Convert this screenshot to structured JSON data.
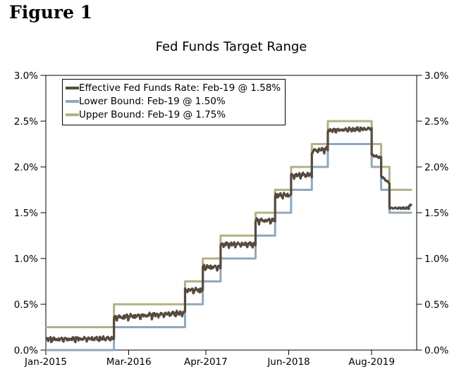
{
  "header": {
    "figure_label": "Figure 1"
  },
  "chart_data": {
    "type": "line",
    "title": "Fed Funds Target Range",
    "grid": false,
    "legend_position": "top-left-inside",
    "x_axis": {
      "unit": "months since Jan-2015",
      "range_months": [
        0,
        62.6
      ],
      "ticks": [
        {
          "m": 0,
          "label": "Jan-2015"
        },
        {
          "m": 14,
          "label": "Mar-2016"
        },
        {
          "m": 27,
          "label": "Apr-2017"
        },
        {
          "m": 41,
          "label": "Jun-2018"
        },
        {
          "m": 55,
          "label": "Aug-2019"
        }
      ]
    },
    "y_axis": {
      "range": [
        0,
        3
      ],
      "tick_step": 0.5,
      "tick_labels": [
        "0.0%",
        "0.5%",
        "1.0%",
        "1.5%",
        "2.0%",
        "2.5%",
        "3.0%"
      ],
      "sides": [
        "left",
        "right"
      ]
    },
    "series": [
      {
        "name": "Effective Fed Funds Rate",
        "legend_label": "Effective Fed Funds Rate: Feb-19 @ 1.58%",
        "final_value_pct": 1.58,
        "color": "#564a3e",
        "line_width": 3.2,
        "style": "noisy",
        "segments": [
          [
            0,
            11.5,
            0.12,
            0.13
          ],
          [
            11.5,
            23.5,
            0.36,
            0.41
          ],
          [
            23.5,
            26.5,
            0.66,
            0.66
          ],
          [
            26.5,
            29.5,
            0.91,
            0.91
          ],
          [
            29.5,
            35.4,
            1.16,
            1.16
          ],
          [
            35.4,
            38.7,
            1.42,
            1.42
          ],
          [
            38.7,
            41.4,
            1.69,
            1.7
          ],
          [
            41.4,
            44.9,
            1.91,
            1.92
          ],
          [
            44.9,
            47.6,
            2.18,
            2.2
          ],
          [
            47.6,
            55.0,
            2.4,
            2.42
          ],
          [
            55.0,
            56.6,
            2.13,
            2.1
          ],
          [
            56.6,
            58.0,
            1.9,
            1.82
          ],
          [
            58.0,
            61.3,
            1.55,
            1.55
          ],
          [
            61.3,
            61.8,
            1.58,
            1.58
          ]
        ]
      },
      {
        "name": "Lower Bound",
        "legend_label": "Lower Bound: Feb-19 @ 1.50%",
        "final_value_pct": 1.5,
        "color": "#8fa8bd",
        "line_width": 3,
        "style": "step",
        "steps": [
          [
            0,
            0.0
          ],
          [
            11.5,
            0.25
          ],
          [
            23.5,
            0.5
          ],
          [
            26.5,
            0.75
          ],
          [
            29.5,
            1.0
          ],
          [
            35.4,
            1.25
          ],
          [
            38.7,
            1.5
          ],
          [
            41.4,
            1.75
          ],
          [
            44.9,
            2.0
          ],
          [
            47.6,
            2.25
          ],
          [
            55.0,
            2.0
          ],
          [
            56.6,
            1.75
          ],
          [
            58.0,
            1.5
          ],
          [
            61.8,
            1.5
          ]
        ]
      },
      {
        "name": "Upper Bound",
        "legend_label": "Upper Bound: Feb-19 @ 1.75%",
        "final_value_pct": 1.75,
        "color": "#b1b286",
        "line_width": 3,
        "style": "step",
        "steps": [
          [
            0,
            0.25
          ],
          [
            11.5,
            0.5
          ],
          [
            23.5,
            0.75
          ],
          [
            26.5,
            1.0
          ],
          [
            29.5,
            1.25
          ],
          [
            35.4,
            1.5
          ],
          [
            38.7,
            1.75
          ],
          [
            41.4,
            2.0
          ],
          [
            44.9,
            2.25
          ],
          [
            47.6,
            2.5
          ],
          [
            55.0,
            2.25
          ],
          [
            56.6,
            2.0
          ],
          [
            58.0,
            1.75
          ],
          [
            61.8,
            1.75
          ]
        ]
      }
    ]
  }
}
